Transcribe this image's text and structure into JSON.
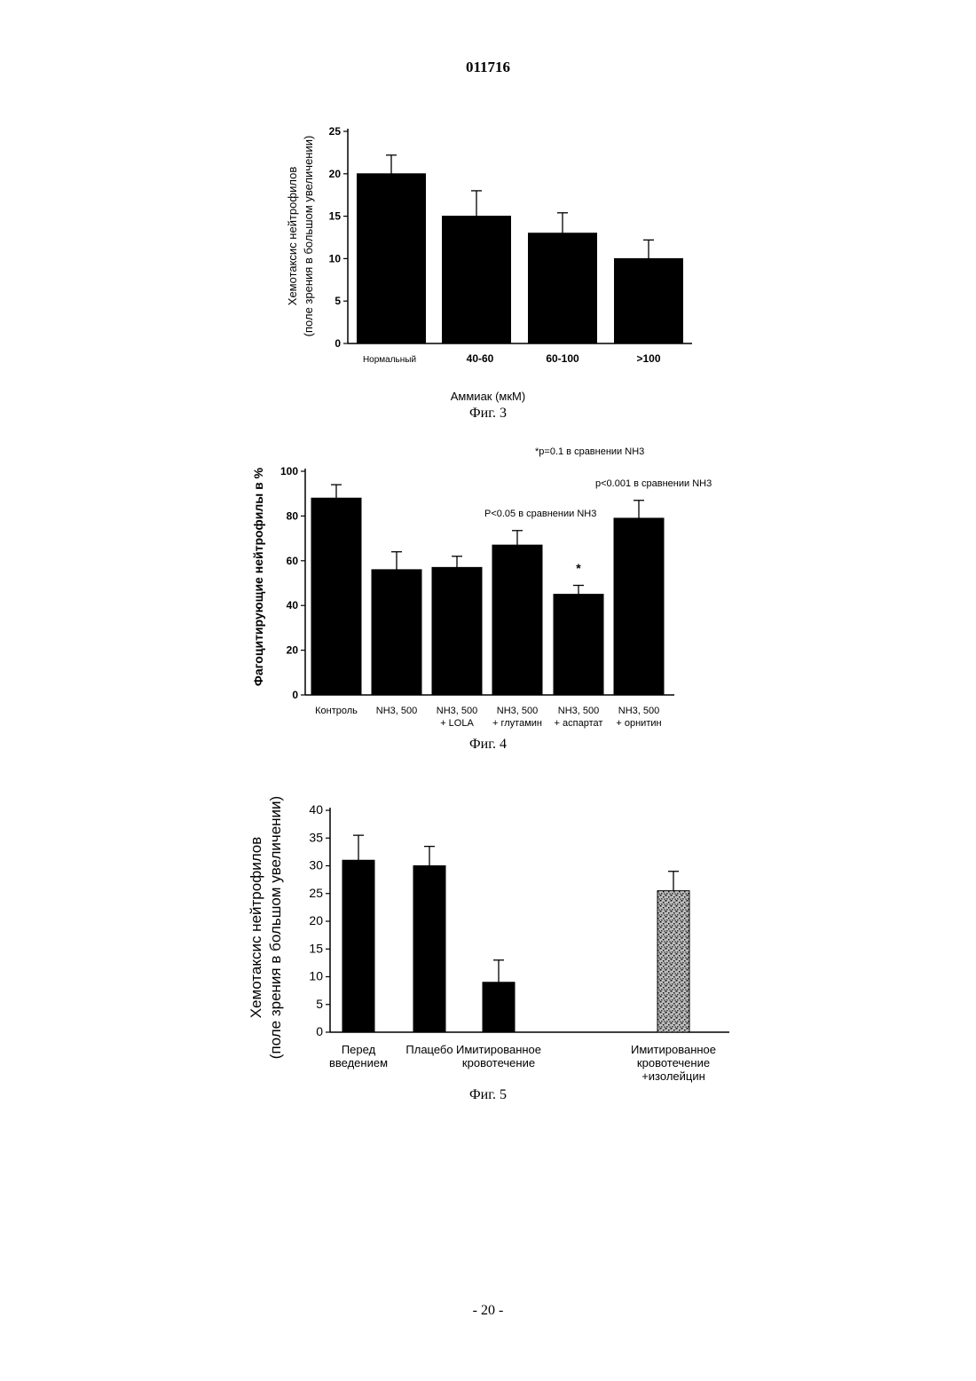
{
  "header": {
    "doc_number": "011716"
  },
  "footer": {
    "page_number": "- 20 -"
  },
  "chart_data": [
    {
      "type": "bar",
      "caption": "Фиг. 3",
      "ylabel_lines": [
        "Хемотаксис нейтрофилов",
        "(поле зрения в большом увеличении)"
      ],
      "xlabel": "Аммиак (мкМ)",
      "categories": [
        "Нормальный",
        "40-60",
        "60-100",
        ">100"
      ],
      "values": [
        20,
        15,
        13,
        10
      ],
      "errors": [
        2.2,
        3,
        2.4,
        2.2
      ],
      "ylim": [
        0,
        25
      ],
      "yticks": [
        "0",
        "5",
        "10",
        "15",
        "20",
        "25"
      ],
      "colors": {
        "bar": "#000000"
      },
      "grid": false
    },
    {
      "type": "bar",
      "caption": "Фиг. 4",
      "ylabel": "Фагоцитирующие нейтрофилы в %",
      "categories": [
        [
          "Контроль"
        ],
        [
          "NH3, 500"
        ],
        [
          "NH3, 500",
          "+ LOLA"
        ],
        [
          "NH3, 500",
          "+ глутамин"
        ],
        [
          "NH3, 500",
          "+ аспартат"
        ],
        [
          "NH3, 500",
          "+ орнитин"
        ]
      ],
      "values": [
        88,
        56,
        57,
        67,
        45,
        79
      ],
      "errors": [
        6,
        8,
        5,
        6.5,
        4,
        8
      ],
      "ylim": [
        0,
        100
      ],
      "yticks": [
        "0",
        "20",
        "40",
        "60",
        "80",
        "100"
      ],
      "annotations": {
        "star": "*",
        "p_aspartate": "*p=0.1 в сравнении NH3",
        "p_ornithine": "p<0.001 в сравнении NH3",
        "p_glutamine": "P<0.05 в сравнении NH3"
      },
      "colors": {
        "bar": "#000000"
      },
      "grid": false
    },
    {
      "type": "bar",
      "caption": "Фиг. 5",
      "ylabel_lines": [
        "Хемотаксис нейтрофилов",
        "(поле зрения в большом увеличении)"
      ],
      "categories": [
        [
          "Перед",
          "введением"
        ],
        [
          "Плацебо"
        ],
        [
          "Имитированное",
          "кровотечение"
        ],
        [
          "Имитированное",
          "кровотечение",
          "+изолейцин"
        ]
      ],
      "values": [
        31,
        30,
        9,
        25.5
      ],
      "errors": [
        4.5,
        3.5,
        4,
        3.5
      ],
      "bar_fill": [
        "solid",
        "solid",
        "solid",
        "stippled"
      ],
      "ylim": [
        0,
        40
      ],
      "yticks": [
        "0",
        "5",
        "10",
        "15",
        "20",
        "25",
        "30",
        "35",
        "40"
      ],
      "colors": {
        "bar": "#000000",
        "stipple": "#555555"
      },
      "grid": false
    }
  ]
}
